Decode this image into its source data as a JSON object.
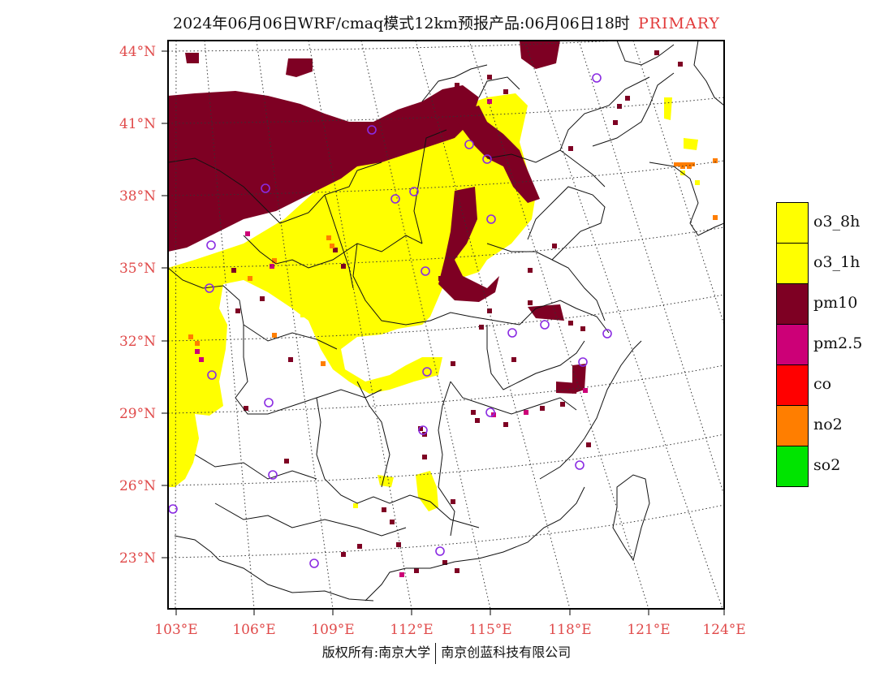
{
  "header": {
    "title": "2024年06月06日WRF/cmaq模式12km预报产品:06月06日18时",
    "tag": "PRIMARY"
  },
  "axes": {
    "lat_labels": [
      "44°N",
      "41°N",
      "38°N",
      "35°N",
      "32°N",
      "29°N",
      "26°N",
      "23°N"
    ],
    "lon_labels": [
      "103°E",
      "106°E",
      "109°E",
      "112°E",
      "115°E",
      "118°E",
      "121°E",
      "124°E"
    ],
    "label_color": "#e04a4a"
  },
  "legend": [
    {
      "label": "o3_8h",
      "color": "#ffff00"
    },
    {
      "label": "o3_1h",
      "color": "#ffff00"
    },
    {
      "label": "pm10",
      "color": "#7e0023"
    },
    {
      "label": "pm2.5",
      "color": "#cc0077"
    },
    {
      "label": "co",
      "color": "#ff0000"
    },
    {
      "label": "no2",
      "color": "#ff7e00"
    },
    {
      "label": "so2",
      "color": "#00e400"
    }
  ],
  "colors": {
    "o3": "#ffff00",
    "pm10": "#7e0023",
    "pm25": "#cc0077",
    "no2": "#ff7e00",
    "station": "#8a2be2"
  },
  "footer": {
    "left": "版权所有:南京大学",
    "right": "南京创蓝科技有限公司"
  }
}
